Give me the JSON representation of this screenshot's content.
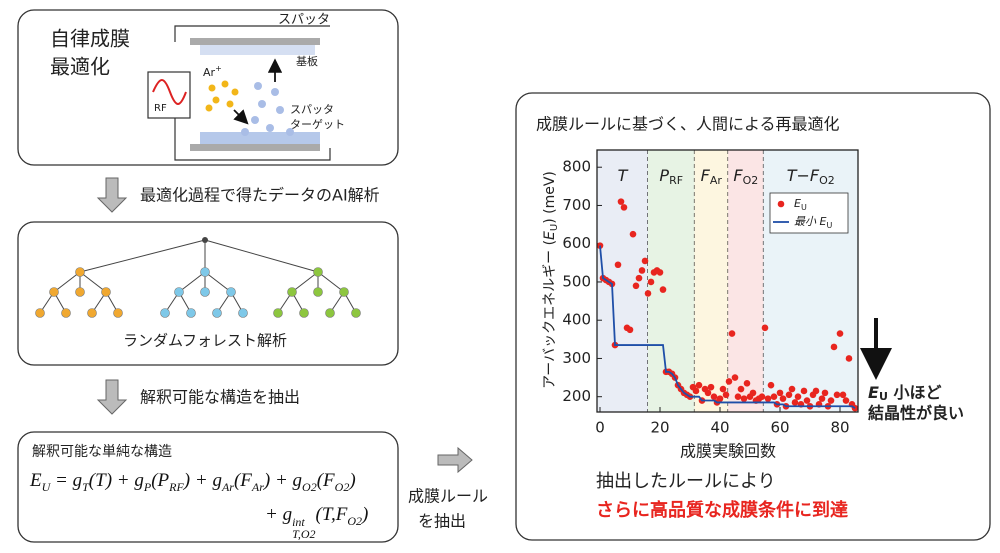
{
  "panel1": {
    "title_lines": [
      "自律成膜",
      "最適化"
    ],
    "sputter": "スパッタ",
    "rf": "RF",
    "ar": "Ar",
    "ar_sup": "+",
    "substrate": "基板",
    "target_lines": [
      "スパッタ",
      "ターゲット"
    ]
  },
  "step1": "最適化過程で得たデータのAI解析",
  "panel2": {
    "label": "ランダムフォレスト解析"
  },
  "step2": "解釈可能な構造を抽出",
  "panel3": {
    "title": "解釈可能な単純な構造",
    "equation": {
      "line1": [
        {
          "text": "E",
          "sub": "U"
        },
        {
          "text": " = g",
          "sub": "T"
        },
        {
          "text": "(T) + g",
          "sub": "P"
        },
        {
          "text": "(P",
          "sub": "RF"
        },
        {
          "text": ") + g",
          "sub": "Ar"
        },
        {
          "text": "(F",
          "sub": "Ar"
        },
        {
          "text": ") + g",
          "sub": "O2"
        },
        {
          "text": "(F",
          "sub": "O2"
        },
        {
          "text": ")"
        }
      ],
      "line2": [
        {
          "text": "+ g",
          "sup": "int",
          "sub": "T,O2"
        },
        {
          "text": "(T,F",
          "sub": "O2"
        },
        {
          "text": ")"
        }
      ]
    }
  },
  "step3_lines": [
    "成膜ルール",
    "を抽出"
  ],
  "chart_data": {
    "type": "scatter",
    "title": "成膜ルールに基づく、人間による再最適化",
    "xlabel": "成膜実験回数",
    "ylabel": {
      "before": "アーバックエネルギー (",
      "var": "E",
      "sub": "U",
      "after": ") (meV)"
    },
    "xlim": [
      -1,
      86
    ],
    "ylim": [
      160,
      845
    ],
    "xticks": [
      0,
      20,
      40,
      60,
      80
    ],
    "yticks": [
      200,
      300,
      400,
      500,
      600,
      700,
      800
    ],
    "regions": [
      {
        "label": "T",
        "start": -1,
        "end": 16,
        "color": "#e9edf5"
      },
      {
        "label": "P",
        "sub": "RF",
        "start": 16,
        "end": 31.5,
        "color": "#e7f3e4"
      },
      {
        "label": "F",
        "sub": "Ar",
        "start": 31.5,
        "end": 42.7,
        "color": "#fdf6e0"
      },
      {
        "label": "F",
        "sub": "O2",
        "start": 42.7,
        "end": 54.5,
        "color": "#fbe5e5"
      },
      {
        "label": "T−F",
        "sub": "O2",
        "start": 54.5,
        "end": 86,
        "color": "#eaf3f8"
      }
    ],
    "x": [
      0,
      1,
      2,
      3,
      4,
      5,
      6,
      7,
      8,
      9,
      10,
      11,
      12,
      13,
      14,
      15,
      16,
      17,
      18,
      19,
      20,
      21,
      22,
      23,
      24,
      25,
      26,
      27,
      28,
      29,
      30,
      31,
      32,
      33,
      34,
      35,
      36,
      37,
      38,
      39,
      40,
      41,
      42,
      43,
      44,
      45,
      46,
      47,
      48,
      49,
      50,
      51,
      52,
      53,
      54,
      55,
      56,
      57,
      58,
      59,
      60,
      61,
      62,
      63,
      64,
      65,
      66,
      67,
      68,
      69,
      70,
      71,
      72,
      73,
      74,
      75,
      76,
      77,
      78,
      79,
      80,
      81,
      82,
      83,
      84,
      85
    ],
    "series": [
      {
        "name": "E",
        "name_sub": "U",
        "color": "#e8251f",
        "type": "scatter",
        "values": [
          595,
          510,
          505,
          500,
          495,
          335,
          545,
          710,
          695,
          380,
          375,
          625,
          490,
          510,
          530,
          555,
          470,
          500,
          525,
          530,
          525,
          480,
          265,
          265,
          260,
          250,
          230,
          220,
          210,
          205,
          200,
          225,
          215,
          230,
          190,
          220,
          210,
          225,
          200,
          185,
          195,
          220,
          205,
          240,
          365,
          250,
          200,
          220,
          195,
          235,
          200,
          210,
          190,
          195,
          200,
          380,
          195,
          230,
          200,
          180,
          210,
          195,
          175,
          205,
          220,
          185,
          200,
          180,
          215,
          190,
          175,
          205,
          215,
          180,
          195,
          210,
          175,
          190,
          330,
          205,
          365,
          205,
          190,
          300,
          180,
          170
        ]
      },
      {
        "name": "最小 E",
        "name_sub": "U",
        "color": "#1f4fa8",
        "type": "line",
        "values": [
          595,
          510,
          505,
          500,
          495,
          335,
          335,
          335,
          335,
          335,
          335,
          335,
          335,
          335,
          335,
          335,
          335,
          335,
          335,
          335,
          335,
          335,
          265,
          265,
          260,
          250,
          230,
          220,
          210,
          205,
          200,
          200,
          200,
          200,
          190,
          190,
          190,
          190,
          190,
          185,
          185,
          185,
          185,
          185,
          185,
          185,
          185,
          185,
          185,
          185,
          185,
          185,
          185,
          185,
          185,
          185,
          185,
          185,
          185,
          180,
          180,
          180,
          175,
          175,
          175,
          175,
          175,
          175,
          175,
          175,
          175,
          175,
          175,
          175,
          175,
          175,
          175,
          175,
          175,
          175,
          175,
          175,
          175,
          175,
          175,
          170
        ]
      }
    ],
    "annotation": {
      "var": "E",
      "sub": "U",
      "rest": " 小ほど",
      "line2": "結晶性が良い"
    }
  },
  "conclusion": {
    "line1": "抽出したルールにより",
    "line2": "さらに高品質な成膜条件に到達"
  }
}
